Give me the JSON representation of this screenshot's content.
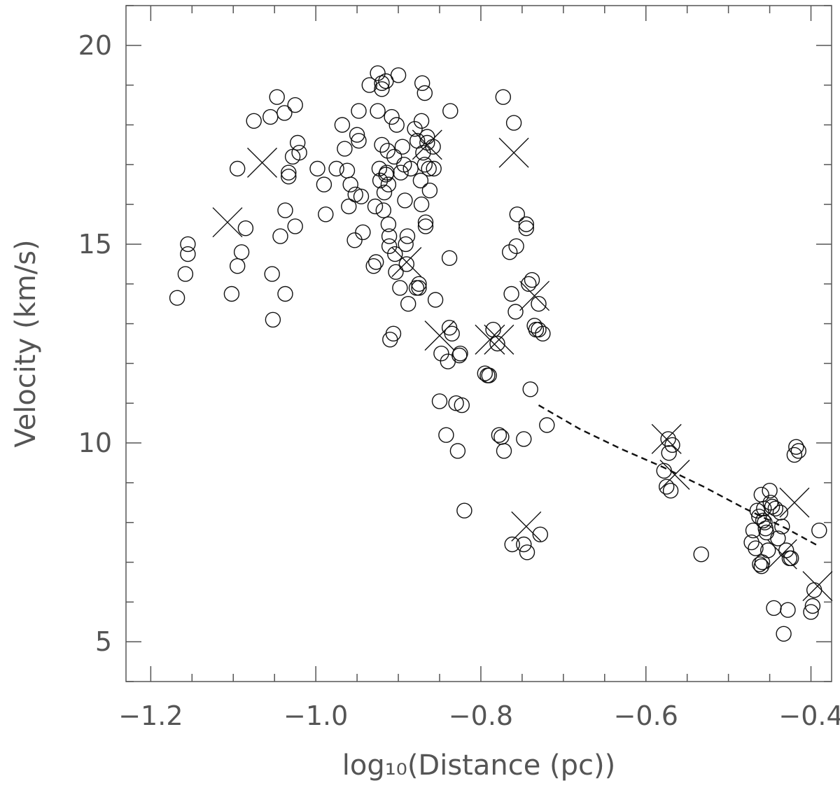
{
  "chart_data": {
    "type": "scatter",
    "title": "",
    "xlabel": "log₁₀(Distance (pc))",
    "ylabel": "Velocity (km/s)",
    "xlim": [
      -1.23,
      -0.375
    ],
    "ylim": [
      4.0,
      21.0
    ],
    "x_ticks": [
      -1.2,
      -1.0,
      -0.8,
      -0.6,
      -0.4
    ],
    "x_tick_labels": [
      "−1.2",
      "−1.0",
      "−0.8",
      "−0.6",
      "−0.4"
    ],
    "y_ticks": [
      5,
      10,
      15,
      20
    ],
    "y_tick_labels": [
      "5",
      "10",
      "15",
      "20"
    ],
    "x_minor_step": 0.05,
    "y_minor_step": 1,
    "grid": false,
    "series": [
      {
        "marker": "circle",
        "points": [
          [
            -1.168,
            13.65
          ],
          [
            -1.158,
            14.25
          ],
          [
            -1.155,
            15.0
          ],
          [
            -1.155,
            14.75
          ],
          [
            -1.102,
            13.75
          ],
          [
            -1.095,
            14.45
          ],
          [
            -1.095,
            16.9
          ],
          [
            -1.09,
            14.8
          ],
          [
            -1.085,
            15.4
          ],
          [
            -1.075,
            18.1
          ],
          [
            -1.055,
            18.2
          ],
          [
            -1.053,
            14.25
          ],
          [
            -1.052,
            13.1
          ],
          [
            -1.047,
            18.7
          ],
          [
            -1.043,
            15.2
          ],
          [
            -1.038,
            18.3
          ],
          [
            -1.037,
            15.85
          ],
          [
            -1.037,
            13.75
          ],
          [
            -1.033,
            16.8
          ],
          [
            -1.033,
            16.7
          ],
          [
            -1.028,
            17.2
          ],
          [
            -1.025,
            18.5
          ],
          [
            -1.025,
            15.45
          ],
          [
            -1.022,
            17.55
          ],
          [
            -1.02,
            17.3
          ],
          [
            -0.998,
            16.9
          ],
          [
            -0.99,
            16.5
          ],
          [
            -0.988,
            15.75
          ],
          [
            -0.975,
            16.9
          ],
          [
            -0.968,
            18.0
          ],
          [
            -0.965,
            17.4
          ],
          [
            -0.962,
            16.85
          ],
          [
            -0.96,
            15.95
          ],
          [
            -0.958,
            16.5
          ],
          [
            -0.953,
            15.1
          ],
          [
            -0.952,
            16.25
          ],
          [
            -0.95,
            17.75
          ],
          [
            -0.948,
            18.35
          ],
          [
            -0.948,
            17.6
          ],
          [
            -0.945,
            16.2
          ],
          [
            -0.943,
            15.3
          ],
          [
            -0.935,
            19.0
          ],
          [
            -0.93,
            14.45
          ],
          [
            -0.928,
            15.95
          ],
          [
            -0.927,
            14.55
          ],
          [
            -0.925,
            19.3
          ],
          [
            -0.925,
            18.35
          ],
          [
            -0.923,
            16.9
          ],
          [
            -0.922,
            16.6
          ],
          [
            -0.92,
            18.9
          ],
          [
            -0.92,
            19.05
          ],
          [
            -0.92,
            17.5
          ],
          [
            -0.918,
            15.85
          ],
          [
            -0.917,
            16.3
          ],
          [
            -0.915,
            19.1
          ],
          [
            -0.915,
            16.75
          ],
          [
            -0.914,
            16.8
          ],
          [
            -0.913,
            17.35
          ],
          [
            -0.912,
            16.5
          ],
          [
            -0.912,
            15.5
          ],
          [
            -0.911,
            15.2
          ],
          [
            -0.911,
            14.95
          ],
          [
            -0.91,
            12.6
          ],
          [
            -0.908,
            18.2
          ],
          [
            -0.906,
            12.75
          ],
          [
            -0.905,
            17.2
          ],
          [
            -0.904,
            14.75
          ],
          [
            -0.903,
            14.3
          ],
          [
            -0.902,
            18.0
          ],
          [
            -0.9,
            19.25
          ],
          [
            -0.898,
            13.9
          ],
          [
            -0.897,
            16.8
          ],
          [
            -0.895,
            17.45
          ],
          [
            -0.893,
            17.0
          ],
          [
            -0.892,
            16.1
          ],
          [
            -0.891,
            15.0
          ],
          [
            -0.89,
            14.5
          ],
          [
            -0.889,
            15.2
          ],
          [
            -0.888,
            13.5
          ],
          [
            -0.885,
            16.9
          ],
          [
            -0.88,
            17.9
          ],
          [
            -0.878,
            13.9
          ],
          [
            -0.877,
            17.6
          ],
          [
            -0.875,
            14.0
          ],
          [
            -0.875,
            13.9
          ],
          [
            -0.873,
            16.6
          ],
          [
            -0.872,
            18.1
          ],
          [
            -0.872,
            16.0
          ],
          [
            -0.871,
            19.05
          ],
          [
            -0.87,
            17.3
          ],
          [
            -0.868,
            18.8
          ],
          [
            -0.868,
            17.0
          ],
          [
            -0.867,
            15.55
          ],
          [
            -0.867,
            15.45
          ],
          [
            -0.865,
            17.7
          ],
          [
            -0.865,
            17.55
          ],
          [
            -0.863,
            16.9
          ],
          [
            -0.862,
            16.35
          ],
          [
            -0.858,
            17.45
          ],
          [
            -0.857,
            16.9
          ],
          [
            -0.855,
            13.6
          ],
          [
            -0.85,
            11.05
          ],
          [
            -0.848,
            12.25
          ],
          [
            -0.842,
            10.2
          ],
          [
            -0.84,
            12.05
          ],
          [
            -0.838,
            14.65
          ],
          [
            -0.838,
            12.9
          ],
          [
            -0.837,
            18.35
          ],
          [
            -0.835,
            12.75
          ],
          [
            -0.83,
            11.0
          ],
          [
            -0.828,
            9.8
          ],
          [
            -0.826,
            12.2
          ],
          [
            -0.825,
            12.25
          ],
          [
            -0.823,
            10.95
          ],
          [
            -0.82,
            8.3
          ],
          [
            -0.795,
            11.75
          ],
          [
            -0.792,
            11.7
          ],
          [
            -0.79,
            11.7
          ],
          [
            -0.785,
            12.85
          ],
          [
            -0.78,
            12.5
          ],
          [
            -0.778,
            10.2
          ],
          [
            -0.775,
            10.15
          ],
          [
            -0.773,
            18.7
          ],
          [
            -0.772,
            9.8
          ],
          [
            -0.765,
            14.8
          ],
          [
            -0.763,
            13.75
          ],
          [
            -0.762,
            7.45
          ],
          [
            -0.76,
            18.05
          ],
          [
            -0.758,
            13.3
          ],
          [
            -0.757,
            14.95
          ],
          [
            -0.756,
            15.75
          ],
          [
            -0.748,
            10.1
          ],
          [
            -0.748,
            7.45
          ],
          [
            -0.745,
            15.5
          ],
          [
            -0.745,
            15.4
          ],
          [
            -0.744,
            7.25
          ],
          [
            -0.742,
            14.0
          ],
          [
            -0.74,
            11.35
          ],
          [
            -0.738,
            14.1
          ],
          [
            -0.735,
            12.95
          ],
          [
            -0.733,
            12.85
          ],
          [
            -0.73,
            13.5
          ],
          [
            -0.73,
            12.85
          ],
          [
            -0.728,
            7.7
          ],
          [
            -0.725,
            12.75
          ],
          [
            -0.72,
            10.45
          ],
          [
            -0.578,
            9.3
          ],
          [
            -0.575,
            8.9
          ],
          [
            -0.573,
            10.1
          ],
          [
            -0.572,
            9.75
          ],
          [
            -0.57,
            8.8
          ],
          [
            -0.568,
            9.95
          ],
          [
            -0.533,
            7.2
          ],
          [
            -0.472,
            7.5
          ],
          [
            -0.47,
            7.8
          ],
          [
            -0.467,
            7.35
          ],
          [
            -0.465,
            8.3
          ],
          [
            -0.463,
            8.15
          ],
          [
            -0.462,
            6.95
          ],
          [
            -0.46,
            8.7
          ],
          [
            -0.46,
            6.9
          ],
          [
            -0.459,
            7.0
          ],
          [
            -0.458,
            8.05
          ],
          [
            -0.457,
            8.35
          ],
          [
            -0.456,
            8.0
          ],
          [
            -0.455,
            7.85
          ],
          [
            -0.454,
            7.75
          ],
          [
            -0.452,
            7.3
          ],
          [
            -0.45,
            8.8
          ],
          [
            -0.449,
            8.5
          ],
          [
            -0.447,
            8.4
          ],
          [
            -0.445,
            5.85
          ],
          [
            -0.443,
            8.35
          ],
          [
            -0.44,
            7.6
          ],
          [
            -0.437,
            8.25
          ],
          [
            -0.435,
            7.9
          ],
          [
            -0.433,
            5.2
          ],
          [
            -0.43,
            7.3
          ],
          [
            -0.428,
            5.8
          ],
          [
            -0.426,
            7.1
          ],
          [
            -0.424,
            7.1
          ],
          [
            -0.42,
            9.7
          ],
          [
            -0.418,
            9.9
          ],
          [
            -0.415,
            9.8
          ],
          [
            -0.4,
            5.75
          ],
          [
            -0.398,
            5.9
          ],
          [
            -0.396,
            6.3
          ],
          [
            -0.39,
            7.8
          ]
        ]
      },
      {
        "marker": "x",
        "points": [
          [
            -1.107,
            15.55
          ],
          [
            -1.065,
            17.05
          ],
          [
            -0.89,
            14.55
          ],
          [
            -0.865,
            17.5
          ],
          [
            -0.85,
            12.7
          ],
          [
            -0.789,
            12.6
          ],
          [
            -0.778,
            12.6
          ],
          [
            -0.76,
            17.3
          ],
          [
            -0.745,
            7.9
          ],
          [
            -0.735,
            13.7
          ],
          [
            -0.575,
            10.1
          ],
          [
            -0.565,
            9.2
          ],
          [
            -0.435,
            7.2
          ],
          [
            -0.42,
            8.5
          ],
          [
            -0.392,
            6.4
          ]
        ]
      }
    ],
    "fit_line": {
      "style": "dashed",
      "points": [
        [
          -0.73,
          10.95
        ],
        [
          -0.68,
          10.35
        ],
        [
          -0.63,
          9.85
        ],
        [
          -0.58,
          9.4
        ],
        [
          -0.53,
          8.9
        ],
        [
          -0.48,
          8.35
        ],
        [
          -0.43,
          7.85
        ],
        [
          -0.39,
          7.4
        ]
      ]
    }
  }
}
